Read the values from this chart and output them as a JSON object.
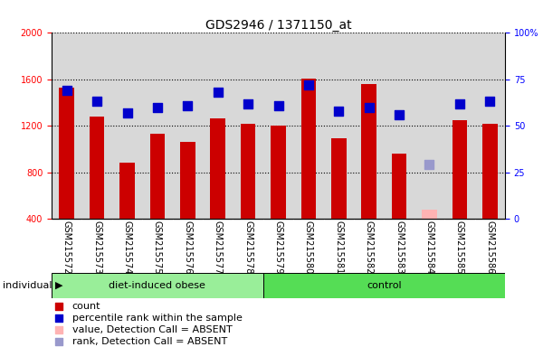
{
  "title": "GDS2946 / 1371150_at",
  "samples": [
    "GSM215572",
    "GSM215573",
    "GSM215574",
    "GSM215575",
    "GSM215576",
    "GSM215577",
    "GSM215578",
    "GSM215579",
    "GSM215580",
    "GSM215581",
    "GSM215582",
    "GSM215583",
    "GSM215584",
    "GSM215585",
    "GSM215586"
  ],
  "n_obese": 7,
  "n_control": 8,
  "count_values": [
    1530,
    1280,
    880,
    1130,
    1060,
    1260,
    1220,
    1200,
    1610,
    1095,
    1560,
    960,
    null,
    1250,
    1220
  ],
  "count_absent": [
    null,
    null,
    null,
    null,
    null,
    null,
    null,
    null,
    null,
    null,
    null,
    null,
    480,
    null,
    null
  ],
  "rank_values": [
    69,
    63,
    57,
    60,
    61,
    68,
    62,
    61,
    72,
    58,
    60,
    56,
    null,
    62,
    63
  ],
  "rank_absent": [
    null,
    null,
    null,
    null,
    null,
    null,
    null,
    null,
    null,
    null,
    null,
    null,
    29,
    null,
    null
  ],
  "ylim_left": [
    400,
    2000
  ],
  "ylim_right": [
    0,
    100
  ],
  "y_ticks_left": [
    400,
    800,
    1200,
    1600,
    2000
  ],
  "y_ticks_right": [
    0,
    25,
    50,
    75,
    100
  ],
  "bar_color": "#cc0000",
  "bar_absent_color": "#ffb3b3",
  "dot_color": "#0000cc",
  "dot_absent_color": "#9999cc",
  "group1_color": "#99ee99",
  "group2_color": "#55dd55",
  "bar_width": 0.5,
  "dot_size": 55,
  "background_plot": "#d8d8d8",
  "grid_linestyle": "dotted",
  "title_fontsize": 10,
  "tick_fontsize": 7,
  "label_fontsize": 8,
  "legend_fontsize": 8
}
